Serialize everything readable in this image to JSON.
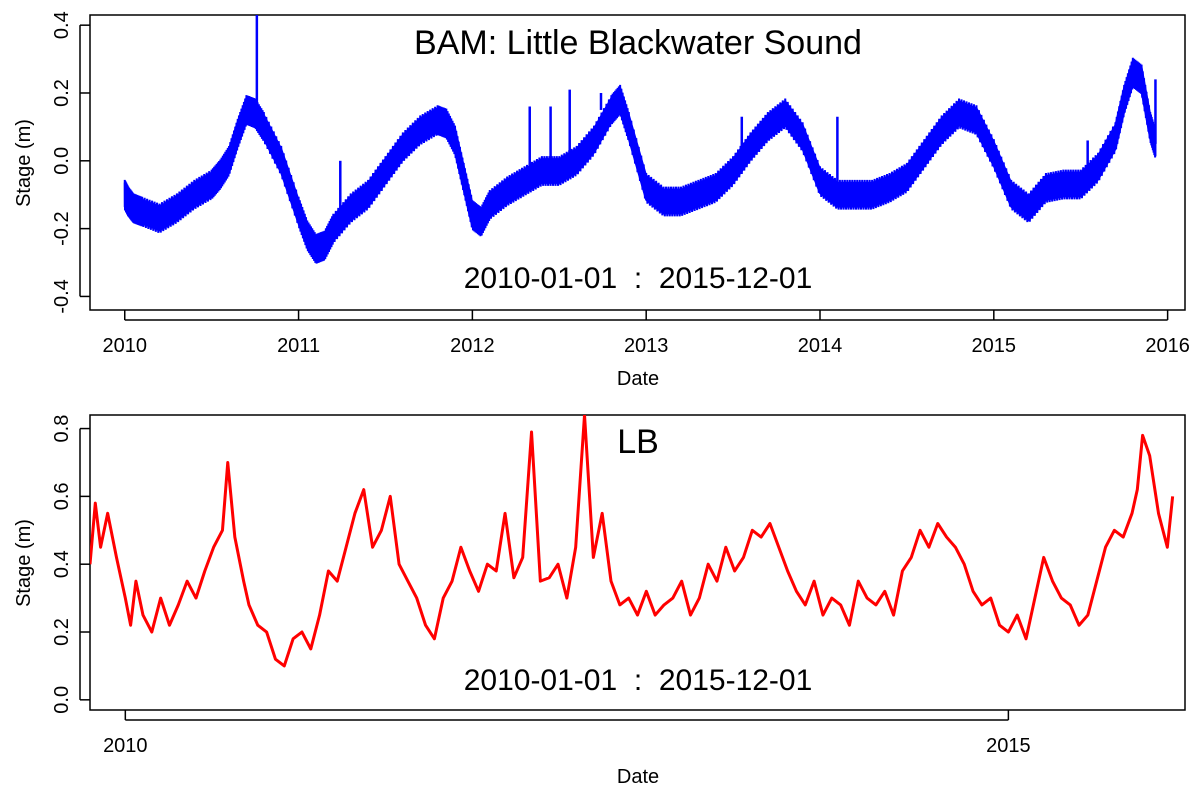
{
  "chart_data": [
    {
      "type": "line",
      "title": "BAM: Little Blackwater Sound",
      "annotation": "2010-01-01  :  2015-12-01",
      "xlabel": "Date",
      "ylabel": "Stage (m)",
      "x_ticks": [
        "2010",
        "2011",
        "2012",
        "2013",
        "2014",
        "2015",
        "2016"
      ],
      "y_ticks": [
        "-0.4",
        "-0.2",
        "0.0",
        "0.2",
        "0.4"
      ],
      "xlim": [
        2009.8,
        2016.1
      ],
      "ylim": [
        -0.44,
        0.43
      ],
      "grid": false,
      "color": "#0000ff",
      "series": [
        {
          "x": [
            2010.0,
            2010.02,
            2010.05,
            2010.1,
            2010.2,
            2010.3,
            2010.4,
            2010.5,
            2010.55,
            2010.6,
            2010.65,
            2010.7,
            2010.75,
            2010.8,
            2010.9,
            2011.0,
            2011.05,
            2011.1,
            2011.15,
            2011.2,
            2011.3,
            2011.4,
            2011.5,
            2011.6,
            2011.7,
            2011.8,
            2011.85,
            2011.9,
            2011.95,
            2012.0,
            2012.05,
            2012.1,
            2012.2,
            2012.3,
            2012.4,
            2012.5,
            2012.6,
            2012.7,
            2012.8,
            2012.85,
            2012.9,
            2013.0,
            2013.1,
            2013.2,
            2013.3,
            2013.4,
            2013.5,
            2013.6,
            2013.7,
            2013.8,
            2013.9,
            2014.0,
            2014.1,
            2014.2,
            2014.3,
            2014.4,
            2014.5,
            2014.6,
            2014.7,
            2014.8,
            2014.9,
            2015.0,
            2015.1,
            2015.2,
            2015.3,
            2015.4,
            2015.5,
            2015.6,
            2015.7,
            2015.75,
            2015.8,
            2015.85,
            2015.9,
            2015.93
          ],
          "y_center": [
            -0.1,
            -0.12,
            -0.14,
            -0.15,
            -0.17,
            -0.14,
            -0.1,
            -0.07,
            -0.04,
            0.0,
            0.08,
            0.15,
            0.14,
            0.1,
            0.0,
            -0.15,
            -0.22,
            -0.26,
            -0.25,
            -0.2,
            -0.14,
            -0.1,
            -0.03,
            0.04,
            0.09,
            0.12,
            0.11,
            0.06,
            -0.05,
            -0.16,
            -0.18,
            -0.13,
            -0.09,
            -0.06,
            -0.03,
            -0.03,
            0.0,
            0.06,
            0.15,
            0.18,
            0.1,
            -0.08,
            -0.12,
            -0.12,
            -0.1,
            -0.08,
            -0.03,
            0.04,
            0.1,
            0.14,
            0.07,
            -0.06,
            -0.1,
            -0.1,
            -0.1,
            -0.08,
            -0.05,
            0.02,
            0.09,
            0.14,
            0.12,
            0.02,
            -0.1,
            -0.14,
            -0.08,
            -0.07,
            -0.07,
            -0.02,
            0.07,
            0.18,
            0.26,
            0.24,
            0.1,
            0.05
          ],
          "band_halfwidth": 0.035,
          "spikes": [
            [
              2010.76,
              0.43
            ],
            [
              2011.24,
              0.0
            ],
            [
              2012.33,
              0.16
            ],
            [
              2012.45,
              0.16
            ],
            [
              2012.56,
              0.21
            ],
            [
              2012.74,
              0.2
            ],
            [
              2013.55,
              0.13
            ],
            [
              2014.1,
              0.13
            ],
            [
              2015.54,
              0.06
            ],
            [
              2015.93,
              0.24
            ]
          ]
        }
      ]
    },
    {
      "type": "line",
      "title": "LB",
      "annotation": "2010-01-01  :  2015-12-01",
      "xlabel": "Date",
      "ylabel": "Stage (m)",
      "x_ticks": [
        "2010",
        "2015"
      ],
      "y_ticks": [
        "0.0",
        "0.2",
        "0.4",
        "0.6",
        "0.8"
      ],
      "xlim": [
        2009.8,
        2016.0
      ],
      "ylim": [
        -0.03,
        0.84
      ],
      "grid": false,
      "color": "#ff0000",
      "series": [
        {
          "x": [
            2009.8,
            2009.83,
            2009.86,
            2009.9,
            2009.95,
            2010.0,
            2010.03,
            2010.06,
            2010.1,
            2010.15,
            2010.2,
            2010.25,
            2010.3,
            2010.35,
            2010.4,
            2010.45,
            2010.5,
            2010.55,
            2010.58,
            2010.62,
            2010.67,
            2010.7,
            2010.75,
            2010.8,
            2010.85,
            2010.9,
            2010.95,
            2011.0,
            2011.05,
            2011.1,
            2011.15,
            2011.2,
            2011.25,
            2011.3,
            2011.35,
            2011.4,
            2011.45,
            2011.5,
            2011.55,
            2011.6,
            2011.65,
            2011.7,
            2011.75,
            2011.8,
            2011.85,
            2011.9,
            2011.95,
            2012.0,
            2012.05,
            2012.1,
            2012.15,
            2012.2,
            2012.25,
            2012.3,
            2012.35,
            2012.4,
            2012.45,
            2012.5,
            2012.55,
            2012.6,
            2012.65,
            2012.7,
            2012.75,
            2012.8,
            2012.85,
            2012.9,
            2012.95,
            2013.0,
            2013.05,
            2013.1,
            2013.15,
            2013.2,
            2013.25,
            2013.3,
            2013.35,
            2013.4,
            2013.45,
            2013.5,
            2013.55,
            2013.6,
            2013.65,
            2013.7,
            2013.75,
            2013.8,
            2013.85,
            2013.9,
            2013.95,
            2014.0,
            2014.05,
            2014.1,
            2014.15,
            2014.2,
            2014.25,
            2014.3,
            2014.35,
            2014.4,
            2014.45,
            2014.5,
            2014.55,
            2014.6,
            2014.65,
            2014.7,
            2014.75,
            2014.8,
            2014.85,
            2014.9,
            2014.95,
            2015.0,
            2015.05,
            2015.1,
            2015.15,
            2015.2,
            2015.25,
            2015.3,
            2015.35,
            2015.4,
            2015.45,
            2015.5,
            2015.55,
            2015.6,
            2015.65,
            2015.7,
            2015.73,
            2015.76,
            2015.8,
            2015.85,
            2015.9,
            2015.93
          ],
          "y": [
            0.4,
            0.58,
            0.45,
            0.55,
            0.42,
            0.3,
            0.22,
            0.35,
            0.25,
            0.2,
            0.3,
            0.22,
            0.28,
            0.35,
            0.3,
            0.38,
            0.45,
            0.5,
            0.7,
            0.48,
            0.35,
            0.28,
            0.22,
            0.2,
            0.12,
            0.1,
            0.18,
            0.2,
            0.15,
            0.25,
            0.38,
            0.35,
            0.45,
            0.55,
            0.62,
            0.45,
            0.5,
            0.6,
            0.4,
            0.35,
            0.3,
            0.22,
            0.18,
            0.3,
            0.35,
            0.45,
            0.38,
            0.32,
            0.4,
            0.38,
            0.55,
            0.36,
            0.42,
            0.79,
            0.35,
            0.36,
            0.4,
            0.3,
            0.45,
            0.84,
            0.42,
            0.55,
            0.35,
            0.28,
            0.3,
            0.25,
            0.32,
            0.25,
            0.28,
            0.3,
            0.35,
            0.25,
            0.3,
            0.4,
            0.35,
            0.45,
            0.38,
            0.42,
            0.5,
            0.48,
            0.52,
            0.45,
            0.38,
            0.32,
            0.28,
            0.35,
            0.25,
            0.3,
            0.28,
            0.22,
            0.35,
            0.3,
            0.28,
            0.32,
            0.25,
            0.38,
            0.42,
            0.5,
            0.45,
            0.52,
            0.48,
            0.45,
            0.4,
            0.32,
            0.28,
            0.3,
            0.22,
            0.2,
            0.25,
            0.18,
            0.3,
            0.42,
            0.35,
            0.3,
            0.28,
            0.22,
            0.25,
            0.35,
            0.45,
            0.5,
            0.48,
            0.55,
            0.62,
            0.78,
            0.72,
            0.55,
            0.45,
            0.6
          ]
        }
      ]
    }
  ]
}
